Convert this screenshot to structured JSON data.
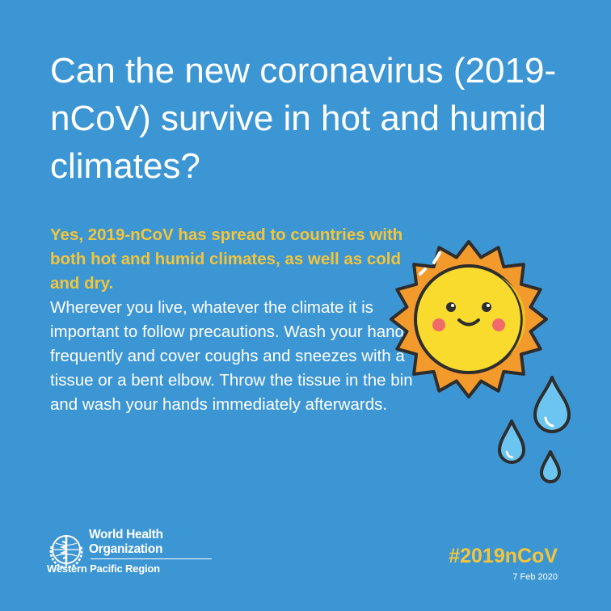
{
  "title": "Can the new coronavirus (2019-nCoV) survive in hot and humid climates?",
  "answer_highlight": "Yes, 2019-nCoV has spread to countries with both hot and humid climates, as well as cold and dry.",
  "answer_body": "Wherever you live, whatever the climate it is important to follow precautions. Wash your hands frequently and cover coughs and sneezes with a tissue or a bent elbow. Throw the tissue in the bin and wash your hands immediately afterwards.",
  "organization": {
    "name_line1": "World Health",
    "name_line2": "Organization",
    "region": "Western Pacific Region"
  },
  "hashtag": "#2019nCoV",
  "date": "7 Feb 2020",
  "colors": {
    "background": "#3d96d4",
    "accent_yellow": "#f3c53a",
    "sun_ray": "#f39a2c",
    "sun_face": "#f9db2e",
    "drop": "#6cc4f0"
  },
  "icons": [
    "sun-icon",
    "water-drop-icon",
    "who-emblem-icon"
  ]
}
